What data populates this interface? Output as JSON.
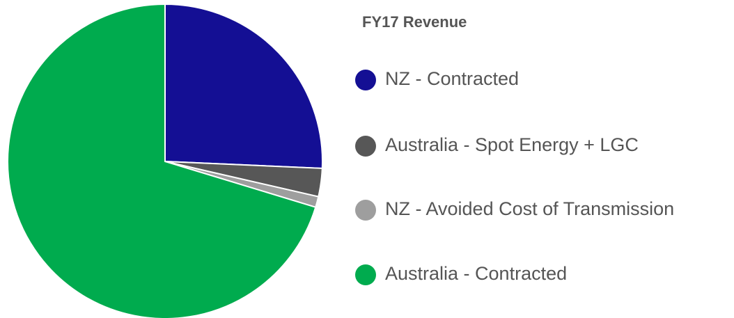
{
  "chart_data": {
    "type": "pie",
    "title": "FY17 Revenue",
    "categories": [
      "NZ - Contracted",
      "Australia - Spot Energy + LGC",
      "NZ - Avoided Cost of Transmission",
      "Australia - Contracted"
    ],
    "values": [
      25.7,
      2.9,
      1.1,
      70.3
    ],
    "colors": [
      "#140f94",
      "#575757",
      "#9e9e9e",
      "#00ab4e"
    ],
    "legend": "right"
  }
}
